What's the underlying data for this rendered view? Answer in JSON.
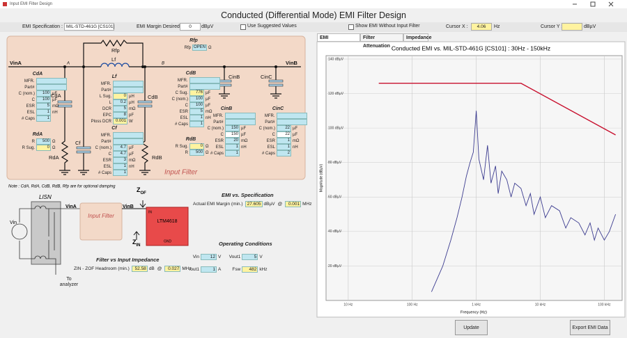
{
  "window": {
    "title": "Input EMI Filter Design"
  },
  "header": {
    "title": "Conducted (Differential Mode) EMI Filter Design"
  },
  "toolbar": {
    "spec_label": "EMI Specification :",
    "spec_value": "MIL-STD-461G [CS101]",
    "margin_label": "EMI Margin Desired :",
    "margin_value": 0,
    "margin_unit": "dBµV",
    "suggested": "Use Suggested Values",
    "show_without": "Show EMI Without Input Filter",
    "cursor_x_label": "Cursor X :",
    "cursor_x_value": 4.06,
    "cursor_x_unit": "Hz",
    "cursor_y_label": "Cursor Y :",
    "cursor_y_unit": "dBµV"
  },
  "schematic": {
    "labels": {
      "vina": "VinA",
      "a": "A",
      "b": "B",
      "vinb": "VinB",
      "rfp": "Rfp",
      "lf": "Lf",
      "cda": "CdA",
      "rda": "RdA",
      "cf": "Cf",
      "cdb": "CdB",
      "rdb": "RdB",
      "cinb": "CinB",
      "cinc": "CinC"
    },
    "caption": "Input Filter"
  },
  "components": {
    "rfp": {
      "title": "Rfp",
      "rows": [
        {
          "label": "Rfp",
          "value": "OPEN",
          "unit": "Ω"
        }
      ]
    },
    "cda": {
      "title": "CdA",
      "rows": [
        {
          "label": "MFR."
        },
        {
          "label": "Part#"
        },
        {
          "label": "C (nom.)",
          "value": 100,
          "unit": "µF"
        },
        {
          "label": "C",
          "value": 100,
          "unit": "µF"
        },
        {
          "label": "ESR",
          "value": 5,
          "unit": "mΩ"
        },
        {
          "label": "ESL",
          "value": 1,
          "unit": "nH"
        },
        {
          "label": "# Caps",
          "value": 1
        }
      ]
    },
    "rda": {
      "title": "RdA",
      "rows": [
        {
          "label": "R",
          "value": 500,
          "unit": "Ω"
        },
        {
          "label": "R Sug.",
          "value": 0,
          "unit": "Ω",
          "color": "#fff3a0"
        }
      ]
    },
    "lf": {
      "title": "Lf",
      "rows": [
        {
          "label": "MFR."
        },
        {
          "label": "Part#"
        },
        {
          "label": "L Sug.",
          "value": 0,
          "unit": "µH",
          "color": "#fff3a0"
        },
        {
          "label": "L",
          "value": 0.2,
          "unit": "µH"
        },
        {
          "label": "DCR",
          "value": 5,
          "unit": "mΩ"
        },
        {
          "label": "EPC",
          "value": 8,
          "unit": "pF"
        },
        {
          "label": "Ploss DCR",
          "value": 0.001,
          "unit": "W",
          "color": "#fff3a0"
        }
      ]
    },
    "cf": {
      "title": "Cf",
      "rows": [
        {
          "label": "MFR."
        },
        {
          "label": "Part#"
        },
        {
          "label": "C (nom.)",
          "value": 4.7,
          "unit": "µF"
        },
        {
          "label": "C",
          "value": 4.7,
          "unit": "µF"
        },
        {
          "label": "ESR",
          "value": 3,
          "unit": "mΩ"
        },
        {
          "label": "ESL",
          "value": 1,
          "unit": "nH"
        },
        {
          "label": "# Caps",
          "value": 1
        }
      ]
    },
    "cdb": {
      "title": "CdB",
      "rows": [
        {
          "label": "MFR."
        },
        {
          "label": "Part#"
        },
        {
          "label": "C Sug.",
          "value": 776,
          "unit": "µF",
          "color": "#fff3a0"
        },
        {
          "label": "C (nom.)",
          "value": 100,
          "unit": "µF"
        },
        {
          "label": "C",
          "value": 100,
          "unit": "µF"
        },
        {
          "label": "ESR",
          "value": 5,
          "unit": "mΩ"
        },
        {
          "label": "ESL",
          "value": 1,
          "unit": "nH"
        },
        {
          "label": "# Caps",
          "value": 1
        }
      ]
    },
    "rdb": {
      "title": "RdB",
      "rows": [
        {
          "label": "R Sug.",
          "value": 0,
          "unit": "Ω",
          "color": "#fff3a0"
        },
        {
          "label": "R",
          "value": 500,
          "unit": "Ω"
        }
      ]
    },
    "cinb": {
      "title": "CinB",
      "rows": [
        {
          "label": "MFR."
        },
        {
          "label": "Part#"
        },
        {
          "label": "C (nom.)",
          "value": 150,
          "unit": "µF"
        },
        {
          "label": "C",
          "value": 150,
          "unit": "µF",
          "color": "#ffffff"
        },
        {
          "label": "ESR",
          "value": 20,
          "unit": "mΩ"
        },
        {
          "label": "ESL",
          "value": 1,
          "unit": "nH"
        },
        {
          "label": "# Caps",
          "value": 1
        }
      ]
    },
    "cinc": {
      "title": "CinC",
      "rows": [
        {
          "label": "MFR."
        },
        {
          "label": "Part#"
        },
        {
          "label": "C (nom.)",
          "value": 22,
          "unit": "µF"
        },
        {
          "label": "C",
          "value": 22,
          "unit": "µF",
          "color": "#ffffff"
        },
        {
          "label": "ESR",
          "value": 1,
          "unit": "mΩ"
        },
        {
          "label": "ESL",
          "value": 1,
          "unit": "nH"
        },
        {
          "label": "# Caps",
          "value": 2
        }
      ]
    }
  },
  "lower": {
    "note": "Note : CdA, RdA, CdB, RdB, Rfp are for optional damping",
    "lisn": "LISN",
    "vin": "Vin",
    "vina": "VinA",
    "filter": "Input Filter",
    "vinb": "VinB",
    "zof": {
      "main": "Z",
      "sub": "OF"
    },
    "zin": {
      "main": "Z",
      "sub": "IN"
    },
    "ic": "LTM4618",
    "in": "IN",
    "gnd": "GND",
    "analyzer": "To analyzer"
  },
  "emi_spec": {
    "title": "EMI vs. Specification",
    "label": "Actual EMI Margin (min.)",
    "value": 27.605,
    "unit": "dBµV",
    "at": "@",
    "freq": 0.001,
    "freq_unit": "MHz"
  },
  "operating": {
    "title": "Operating Conditions",
    "fields": [
      {
        "label": "Vin",
        "value": 12,
        "unit": "V"
      },
      {
        "label": "Vout1",
        "value": 5,
        "unit": "V"
      },
      {
        "label": "Iout1",
        "value": 1,
        "unit": "A"
      },
      {
        "label": "Fsw",
        "value": 482,
        "unit": "kHz",
        "color": "#fff3a0"
      }
    ]
  },
  "impedance": {
    "title": "Filter vs Input Impedance",
    "label": "ZIN - ZOF Headroom (min.)",
    "value": 52.58,
    "unit": "dB",
    "at": "@",
    "freq": 0.027,
    "freq_unit": "MHz"
  },
  "tabs": [
    "EMI",
    "Filter Attenuation",
    "Impedance"
  ],
  "chart_data": {
    "type": "line",
    "title": "Conducted EMI vs. MIL-STD-461G [CS101] : 30Hz - 150kHz",
    "x_label": "Frequency (Hz)",
    "y_label": "Magnitude (dBµV)",
    "log_x": true,
    "grid": true,
    "xlim": [
      4.5,
      190000
    ],
    "ylim": [
      0,
      142
    ],
    "xticks": [
      {
        "value": 10,
        "label": "10 Hz"
      },
      {
        "value": 100,
        "label": "100 Hz"
      },
      {
        "value": 1000,
        "label": "1 kHz"
      },
      {
        "value": 10000,
        "label": "10 kHz"
      },
      {
        "value": 100000,
        "label": "100 kHz"
      }
    ],
    "yticks": [
      {
        "value": 20,
        "label": "20 dBµV"
      },
      {
        "value": 40,
        "label": "40 dBµV"
      },
      {
        "value": 60,
        "label": "60 dBµV"
      },
      {
        "value": 80,
        "label": "80 dBµV"
      },
      {
        "value": 100,
        "label": "100 dBµV"
      },
      {
        "value": 120,
        "label": "120 dBµV"
      },
      {
        "value": 140,
        "label": "140 dBµV"
      }
    ],
    "series": [
      {
        "color": "#c8102e",
        "x": [
          30,
          5000,
          150000
        ],
        "values": [
          126,
          126,
          96
        ]
      },
      {
        "color": "#3b3b8f",
        "x": [
          200,
          300,
          400,
          500,
          600,
          700,
          800,
          900,
          1000,
          1100,
          1300,
          1500,
          1700,
          2000,
          2200,
          2500,
          3000,
          3500,
          4000,
          5000,
          6000,
          7000,
          8000,
          10000,
          12000,
          15000,
          20000,
          25000,
          30000,
          40000,
          50000,
          60000,
          70000,
          80000,
          100000,
          120000,
          150000
        ],
        "values": [
          5,
          20,
          35,
          48,
          60,
          72,
          80,
          86,
          110,
          82,
          70,
          90,
          68,
          78,
          62,
          75,
          70,
          60,
          68,
          65,
          55,
          62,
          50,
          60,
          48,
          55,
          52,
          42,
          48,
          45,
          38,
          45,
          35,
          42,
          35,
          40,
          50
        ]
      }
    ]
  },
  "buttons": {
    "update": "Update",
    "export": "Export EMI Data"
  }
}
